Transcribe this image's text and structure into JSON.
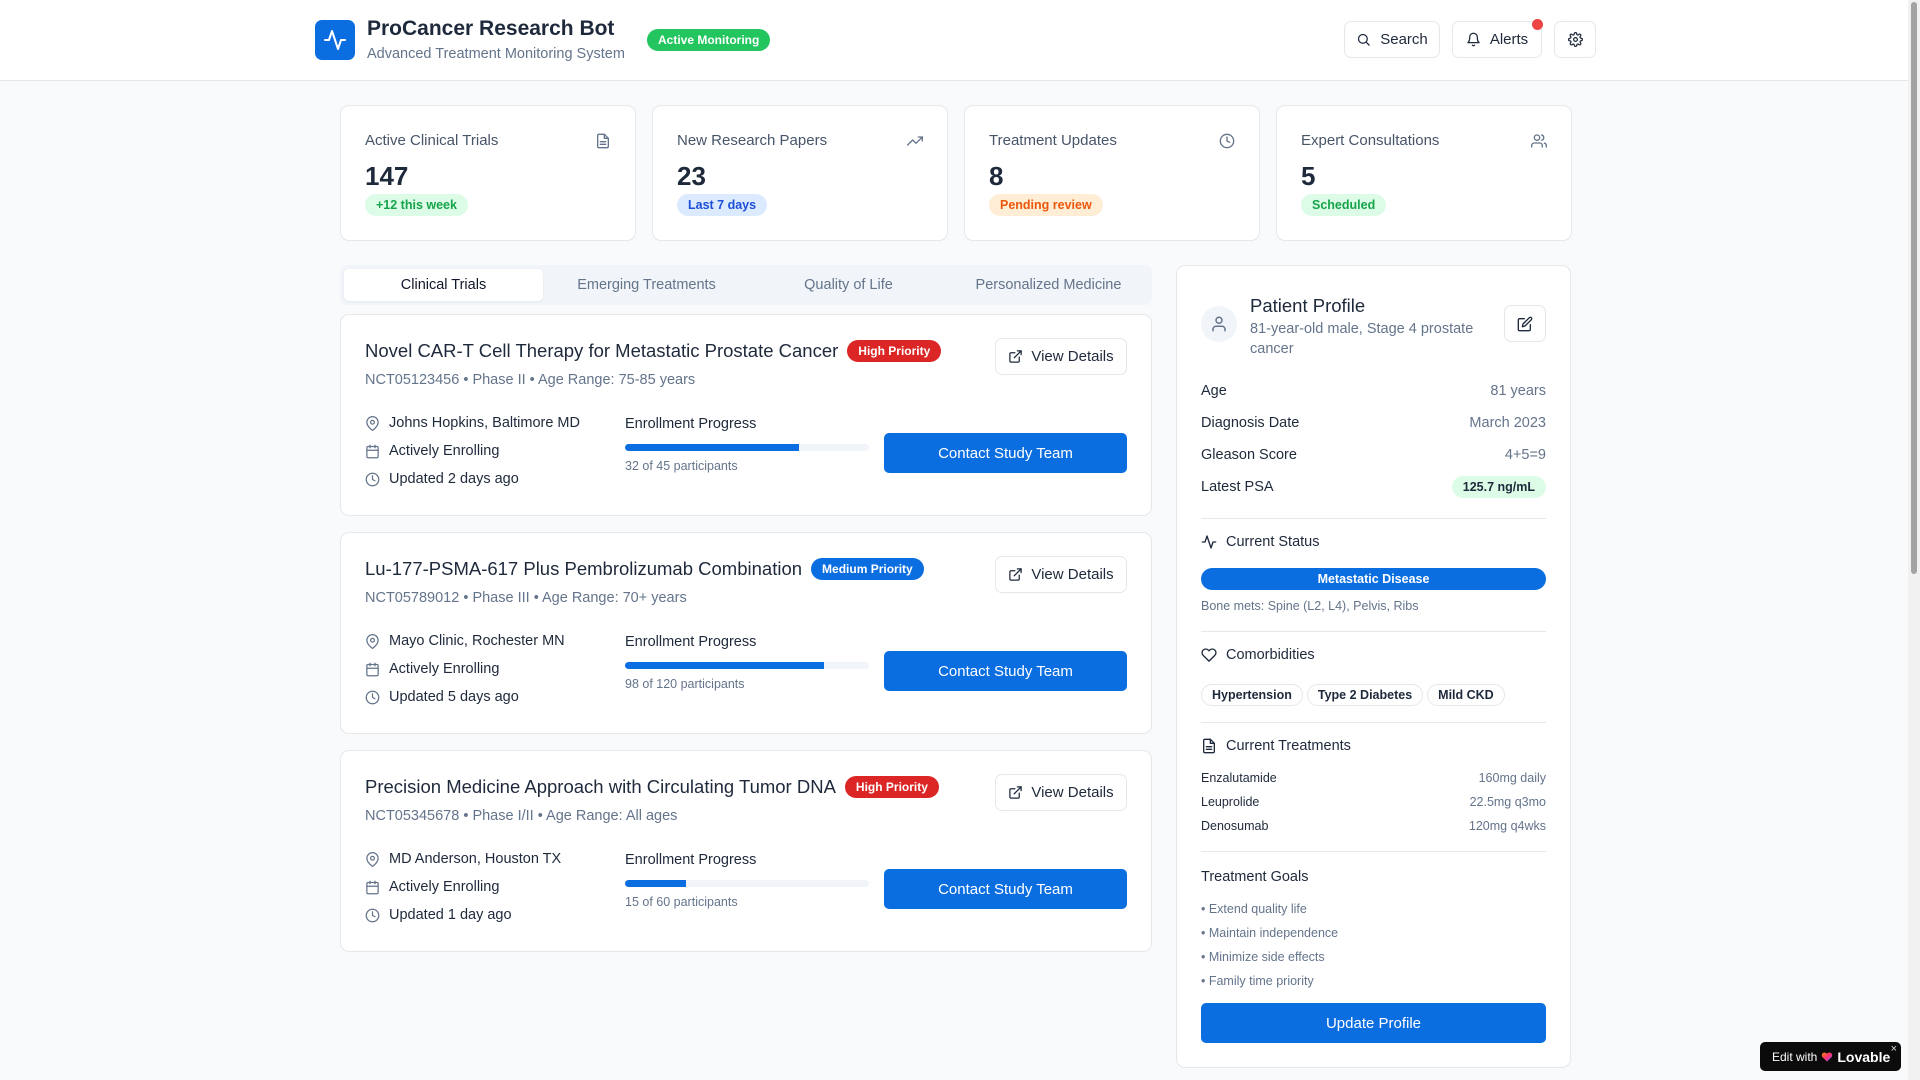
{
  "header": {
    "title": "ProCancer Research Bot",
    "subtitle": "Advanced Treatment Monitoring System",
    "status_badge": "Active Monitoring",
    "search_label": "Search",
    "alerts_label": "Alerts",
    "logo_icon": "activity-icon",
    "settings_icon": "gear-icon"
  },
  "stats": [
    {
      "label": "Active Clinical Trials",
      "value": "147",
      "badge": "+12 this week",
      "icon": "document-icon"
    },
    {
      "label": "New Research Papers",
      "value": "23",
      "badge": "Last 7 days",
      "icon": "trending-up-icon"
    },
    {
      "label": "Treatment Updates",
      "value": "8",
      "badge": "Pending review",
      "icon": "clock-icon"
    },
    {
      "label": "Expert Consultations",
      "value": "5",
      "badge": "Scheduled",
      "icon": "users-icon"
    }
  ],
  "tabs": [
    {
      "label": "Clinical Trials",
      "active": true
    },
    {
      "label": "Emerging Treatments",
      "active": false
    },
    {
      "label": "Quality of Life",
      "active": false
    },
    {
      "label": "Personalized Medicine",
      "active": false
    }
  ],
  "trials": [
    {
      "title": "Novel CAR-T Cell Therapy for Metastatic Prostate Cancer",
      "priority": "High Priority",
      "meta": "NCT05123456 • Phase II • Age Range: 75-85 years",
      "location": "Johns Hopkins, Baltimore MD",
      "status": "Actively Enrolling",
      "updated": "Updated 2 days ago",
      "enrollment_label": "Enrollment Progress",
      "enrolled": 32,
      "capacity": 45,
      "enrollment_text": "32 of 45 participants",
      "view_label": "View Details",
      "contact_label": "Contact Study Team"
    },
    {
      "title": "Lu-177-PSMA-617 Plus Pembrolizumab Combination",
      "priority": "Medium Priority",
      "meta": "NCT05789012 • Phase III • Age Range: 70+ years",
      "location": "Mayo Clinic, Rochester MN",
      "status": "Actively Enrolling",
      "updated": "Updated 5 days ago",
      "enrollment_label": "Enrollment Progress",
      "enrolled": 98,
      "capacity": 120,
      "enrollment_text": "98 of 120 participants",
      "view_label": "View Details",
      "contact_label": "Contact Study Team"
    },
    {
      "title": "Precision Medicine Approach with Circulating Tumor DNA",
      "priority": "High Priority",
      "meta": "NCT05345678 • Phase I/II • Age Range: All ages",
      "location": "MD Anderson, Houston TX",
      "status": "Actively Enrolling",
      "updated": "Updated 1 day ago",
      "enrollment_label": "Enrollment Progress",
      "enrolled": 15,
      "capacity": 60,
      "enrollment_text": "15 of 60 participants",
      "view_label": "View Details",
      "contact_label": "Contact Study Team"
    }
  ],
  "patient": {
    "title": "Patient Profile",
    "description": "81-year-old male, Stage 4 prostate cancer",
    "fields": [
      {
        "label": "Age",
        "value": "81 years"
      },
      {
        "label": "Diagnosis Date",
        "value": "March 2023"
      },
      {
        "label": "Gleason Score",
        "value": "4+5=9"
      },
      {
        "label": "Latest PSA",
        "value": "125.7 ng/mL"
      }
    ],
    "current_status_heading": "Current Status",
    "status_value": "Metastatic Disease",
    "status_detail": "Bone mets: Spine (L2, L4), Pelvis, Ribs",
    "comorbidities_heading": "Comorbidities",
    "comorbidities": [
      "Hypertension",
      "Type 2 Diabetes",
      "Mild CKD"
    ],
    "treatments_heading": "Current Treatments",
    "treatments": [
      {
        "name": "Enzalutamide",
        "dose": "160mg daily"
      },
      {
        "name": "Leuprolide",
        "dose": "22.5mg q3mo"
      },
      {
        "name": "Denosumab",
        "dose": "120mg q4wks"
      }
    ],
    "goals_heading": "Treatment Goals",
    "goals": [
      "• Extend quality life",
      "• Maintain independence",
      "• Minimize side effects",
      "• Family time priority"
    ],
    "update_label": "Update Profile"
  },
  "footer": {
    "edit_with": "Edit with",
    "brand": "Lovable",
    "close": "×"
  },
  "colors": {
    "accent": "#0b6ee0",
    "high": "#dc2626",
    "medium": "#0b6ee0",
    "success": "#22c55e"
  }
}
